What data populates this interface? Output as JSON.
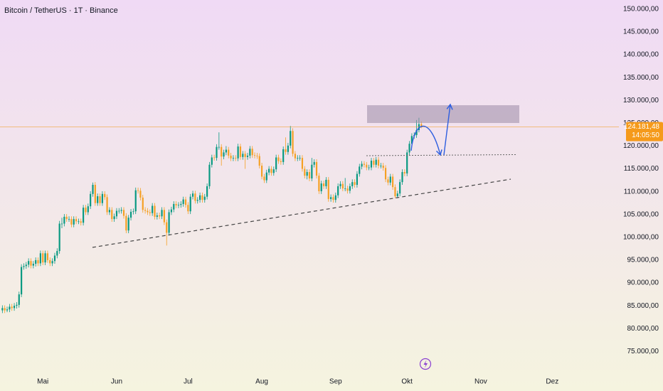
{
  "chart_data": {
    "type": "candlestick",
    "title": "Bitcoin / TetherUS · 1T · Binance",
    "up_color": "#089981",
    "down_color": "#f5a023",
    "price_line_color": "#f59a1b",
    "grid": false,
    "ylim": [
      71000,
      152000
    ],
    "yticks": [
      {
        "value": 75000,
        "label": "75.000,00"
      },
      {
        "value": 80000,
        "label": "80.000,00"
      },
      {
        "value": 85000,
        "label": "85.000,00"
      },
      {
        "value": 90000,
        "label": "90.000,00"
      },
      {
        "value": 95000,
        "label": "95.000,00"
      },
      {
        "value": 100000,
        "label": "100.000,00"
      },
      {
        "value": 105000,
        "label": "105.000,00"
      },
      {
        "value": 110000,
        "label": "110.000,00"
      },
      {
        "value": 115000,
        "label": "115.000,00"
      },
      {
        "value": 120000,
        "label": "120.000,00"
      },
      {
        "value": 125000,
        "label": "125.000,00"
      },
      {
        "value": 130000,
        "label": "130.000,00"
      },
      {
        "value": 135000,
        "label": "135.000,00"
      },
      {
        "value": 140000,
        "label": "140.000,00"
      },
      {
        "value": 145000,
        "label": "145.000,00"
      },
      {
        "value": 150000,
        "label": "150.000,00"
      }
    ],
    "xlim": [
      -1,
      259
    ],
    "xticks": [
      {
        "value": 17,
        "label": "Mai"
      },
      {
        "value": 48,
        "label": "Jun"
      },
      {
        "value": 78,
        "label": "Jul"
      },
      {
        "value": 109,
        "label": "Aug"
      },
      {
        "value": 140,
        "label": "Sep"
      },
      {
        "value": 170,
        "label": "Okt"
      },
      {
        "value": 201,
        "label": "Nov"
      },
      {
        "value": 231,
        "label": "Dez"
      }
    ],
    "current_price": {
      "value": 124181.48,
      "label": "124.181,48"
    },
    "countdown": "14:05:50",
    "ohlc": [
      [
        84000,
        85100,
        83400,
        84500
      ],
      [
        84500,
        85100,
        83400,
        84000
      ],
      [
        84000,
        84800,
        83600,
        84200
      ],
      [
        84200,
        85400,
        83600,
        84800
      ],
      [
        84800,
        85400,
        83900,
        84500
      ],
      [
        84500,
        85600,
        83900,
        85000
      ],
      [
        85000,
        85800,
        84400,
        85200
      ],
      [
        85200,
        88100,
        84600,
        87500
      ],
      [
        87500,
        94100,
        86900,
        93500
      ],
      [
        93500,
        94300,
        92900,
        93700
      ],
      [
        93700,
        94600,
        93100,
        94000
      ],
      [
        94000,
        95400,
        93400,
        94800
      ],
      [
        94800,
        95400,
        93200,
        93800
      ],
      [
        93800,
        94800,
        93200,
        94200
      ],
      [
        94200,
        95600,
        93600,
        95000
      ],
      [
        95000,
        95600,
        93700,
        94300
      ],
      [
        94300,
        97100,
        93700,
        96500
      ],
      [
        96500,
        97100,
        93900,
        94500
      ],
      [
        94500,
        97100,
        93900,
        96500
      ],
      [
        96500,
        97100,
        94400,
        95000
      ],
      [
        95000,
        95600,
        93700,
        94300
      ],
      [
        94300,
        95400,
        93700,
        94800
      ],
      [
        94800,
        96600,
        94200,
        96000
      ],
      [
        96000,
        97600,
        95400,
        97000
      ],
      [
        97000,
        103600,
        96400,
        103000
      ],
      [
        103000,
        104300,
        102000,
        103000
      ],
      [
        103000,
        105100,
        102400,
        104500
      ],
      [
        104500,
        105100,
        103400,
        104000
      ],
      [
        104000,
        104600,
        103400,
        104000
      ],
      [
        104000,
        104600,
        102200,
        102800
      ],
      [
        102800,
        104600,
        102200,
        104000
      ],
      [
        104000,
        104600,
        102900,
        103500
      ],
      [
        103500,
        104100,
        102900,
        103500
      ],
      [
        103500,
        104100,
        102600,
        103200
      ],
      [
        103200,
        107100,
        102600,
        106500
      ],
      [
        106500,
        107100,
        104900,
        105500
      ],
      [
        105500,
        107400,
        104900,
        106800
      ],
      [
        106800,
        110100,
        106200,
        109500
      ],
      [
        109500,
        112000,
        108900,
        111500
      ],
      [
        111500,
        112100,
        106900,
        107500
      ],
      [
        107500,
        109600,
        106900,
        109000
      ],
      [
        109000,
        109600,
        106900,
        107500
      ],
      [
        107500,
        110100,
        106900,
        109500
      ],
      [
        109500,
        110100,
        108200,
        108800
      ],
      [
        108800,
        109400,
        104900,
        105500
      ],
      [
        105500,
        106600,
        104900,
        106000
      ],
      [
        106000,
        106600,
        103400,
        104000
      ],
      [
        104000,
        105200,
        103400,
        104600
      ],
      [
        104600,
        106400,
        104000,
        105800
      ],
      [
        105800,
        106400,
        105200,
        105800
      ],
      [
        105800,
        106600,
        105200,
        106000
      ],
      [
        106000,
        106600,
        104100,
        104700
      ],
      [
        104700,
        105300,
        100900,
        101500
      ],
      [
        101500,
        104900,
        100900,
        104300
      ],
      [
        104300,
        106200,
        103700,
        105600
      ],
      [
        105600,
        106300,
        105000,
        105700
      ],
      [
        105700,
        110900,
        105100,
        110300
      ],
      [
        110300,
        110900,
        109600,
        110200
      ],
      [
        110200,
        110800,
        108100,
        108700
      ],
      [
        108700,
        109300,
        105400,
        106000
      ],
      [
        106000,
        106600,
        105200,
        105800
      ],
      [
        105800,
        106400,
        104900,
        105500
      ],
      [
        105500,
        106100,
        104700,
        105300
      ],
      [
        105300,
        107500,
        104700,
        106900
      ],
      [
        106900,
        107500,
        103900,
        104500
      ],
      [
        104500,
        105400,
        103900,
        104800
      ],
      [
        104800,
        105400,
        104000,
        104600
      ],
      [
        104600,
        106600,
        104000,
        106000
      ],
      [
        106000,
        106600,
        102700,
        103300
      ],
      [
        103300,
        103900,
        98200,
        101000
      ],
      [
        101000,
        106100,
        100400,
        105500
      ],
      [
        105500,
        106700,
        104900,
        106100
      ],
      [
        106100,
        107900,
        105500,
        107300
      ],
      [
        107300,
        107900,
        106400,
        107000
      ],
      [
        107000,
        107700,
        106400,
        107100
      ],
      [
        107100,
        107900,
        106500,
        107300
      ],
      [
        107300,
        108900,
        106700,
        108300
      ],
      [
        108300,
        108900,
        106500,
        107100
      ],
      [
        107100,
        107700,
        105100,
        105700
      ],
      [
        105700,
        109500,
        105100,
        108900
      ],
      [
        108900,
        110200,
        108300,
        109600
      ],
      [
        109600,
        110200,
        107400,
        108000
      ],
      [
        108000,
        108800,
        107400,
        108200
      ],
      [
        108200,
        109800,
        107600,
        109200
      ],
      [
        109200,
        109800,
        107600,
        108200
      ],
      [
        108200,
        109500,
        107600,
        108900
      ],
      [
        108900,
        111800,
        108300,
        111200
      ],
      [
        111200,
        116500,
        110600,
        115900
      ],
      [
        115900,
        118100,
        115300,
        117500
      ],
      [
        117500,
        118100,
        116800,
        117400
      ],
      [
        117400,
        120400,
        116800,
        119800
      ],
      [
        119800,
        123000,
        119200,
        119800
      ],
      [
        119800,
        120400,
        115700,
        117700
      ],
      [
        117700,
        119200,
        117100,
        118600
      ],
      [
        118600,
        120000,
        118000,
        119200
      ],
      [
        119200,
        119800,
        117300,
        117900
      ],
      [
        117900,
        118500,
        116700,
        117300
      ],
      [
        117300,
        118000,
        116700,
        117400
      ],
      [
        117400,
        118000,
        116700,
        117300
      ],
      [
        117300,
        120500,
        116700,
        119900
      ],
      [
        119900,
        120500,
        117000,
        117600
      ],
      [
        117600,
        118900,
        117000,
        118300
      ],
      [
        118300,
        118900,
        115000,
        117600
      ],
      [
        117600,
        118500,
        117000,
        117900
      ],
      [
        117900,
        120000,
        117300,
        119400
      ],
      [
        119400,
        120000,
        117400,
        118000
      ],
      [
        118000,
        118600,
        117300,
        117900
      ],
      [
        117900,
        118500,
        117200,
        117800
      ],
      [
        117800,
        118400,
        115100,
        115700
      ],
      [
        115700,
        116300,
        112700,
        113300
      ],
      [
        113300,
        113900,
        111900,
        112500
      ],
      [
        112500,
        114800,
        111900,
        114200
      ],
      [
        114200,
        115600,
        113600,
        115000
      ],
      [
        115000,
        115600,
        113500,
        114100
      ],
      [
        114100,
        115500,
        113500,
        114900
      ],
      [
        114900,
        118100,
        114300,
        117500
      ],
      [
        117500,
        118100,
        116100,
        116700
      ],
      [
        116700,
        117300,
        115900,
        116500
      ],
      [
        116500,
        119900,
        115900,
        119300
      ],
      [
        119300,
        121900,
        118100,
        118700
      ],
      [
        118700,
        120700,
        118100,
        120100
      ],
      [
        120100,
        124400,
        119500,
        123300
      ],
      [
        123300,
        123900,
        117700,
        118300
      ],
      [
        118300,
        118900,
        116700,
        117300
      ],
      [
        117300,
        118000,
        116700,
        117400
      ],
      [
        117400,
        118000,
        116800,
        117400
      ],
      [
        117400,
        118000,
        114400,
        115000
      ],
      [
        115000,
        115600,
        112900,
        113500
      ],
      [
        113500,
        114900,
        112700,
        114300
      ],
      [
        114300,
        114900,
        112300,
        112900
      ],
      [
        112900,
        117400,
        112300,
        115900
      ],
      [
        115900,
        117100,
        115300,
        116500
      ],
      [
        116500,
        117100,
        112900,
        113500
      ],
      [
        113500,
        114100,
        109500,
        110100
      ],
      [
        110100,
        112400,
        109500,
        111800
      ],
      [
        111800,
        112400,
        110600,
        111200
      ],
      [
        111200,
        113200,
        110600,
        112600
      ],
      [
        112600,
        113200,
        107800,
        108400
      ],
      [
        108400,
        109400,
        107800,
        108800
      ],
      [
        108800,
        109400,
        107600,
        108200
      ],
      [
        108200,
        109800,
        107600,
        109200
      ],
      [
        109200,
        111800,
        108600,
        111200
      ],
      [
        111200,
        112300,
        110600,
        111700
      ],
      [
        111700,
        112300,
        110100,
        110700
      ],
      [
        110700,
        113000,
        110100,
        110700
      ],
      [
        110700,
        111300,
        109600,
        110200
      ],
      [
        110200,
        111800,
        109600,
        111200
      ],
      [
        111200,
        112700,
        110600,
        112100
      ],
      [
        112100,
        112700,
        110900,
        111500
      ],
      [
        111500,
        114500,
        110900,
        113900
      ],
      [
        113900,
        116100,
        113300,
        115500
      ],
      [
        115500,
        116700,
        114900,
        116100
      ],
      [
        116100,
        116700,
        115300,
        115900
      ],
      [
        115900,
        116500,
        114700,
        115300
      ],
      [
        115300,
        115900,
        114700,
        115300
      ],
      [
        115300,
        117400,
        114700,
        116800
      ],
      [
        116800,
        117400,
        115300,
        115900
      ],
      [
        115900,
        117600,
        115300,
        117000
      ],
      [
        117000,
        117600,
        115100,
        115700
      ],
      [
        115700,
        116300,
        115100,
        115700
      ],
      [
        115700,
        116300,
        114600,
        115200
      ],
      [
        115200,
        115800,
        112100,
        112700
      ],
      [
        112700,
        113300,
        111400,
        112000
      ],
      [
        112000,
        113900,
        111400,
        113300
      ],
      [
        113300,
        113900,
        110400,
        111000
      ],
      [
        111000,
        111600,
        108600,
        109000
      ],
      [
        109000,
        110200,
        108600,
        109600
      ],
      [
        109600,
        112700,
        109000,
        112100
      ],
      [
        112100,
        114900,
        111500,
        114300
      ],
      [
        114300,
        114900,
        113400,
        114000
      ],
      [
        114000,
        119200,
        113400,
        118600
      ],
      [
        118600,
        121100,
        118000,
        120500
      ],
      [
        120500,
        122800,
        119900,
        122200
      ],
      [
        122200,
        123000,
        121600,
        122400
      ],
      [
        122400,
        125700,
        121800,
        123500
      ],
      [
        123500,
        126200,
        123000,
        124800
      ],
      [
        124800,
        125400,
        123900,
        124181.48
      ]
    ]
  }
}
